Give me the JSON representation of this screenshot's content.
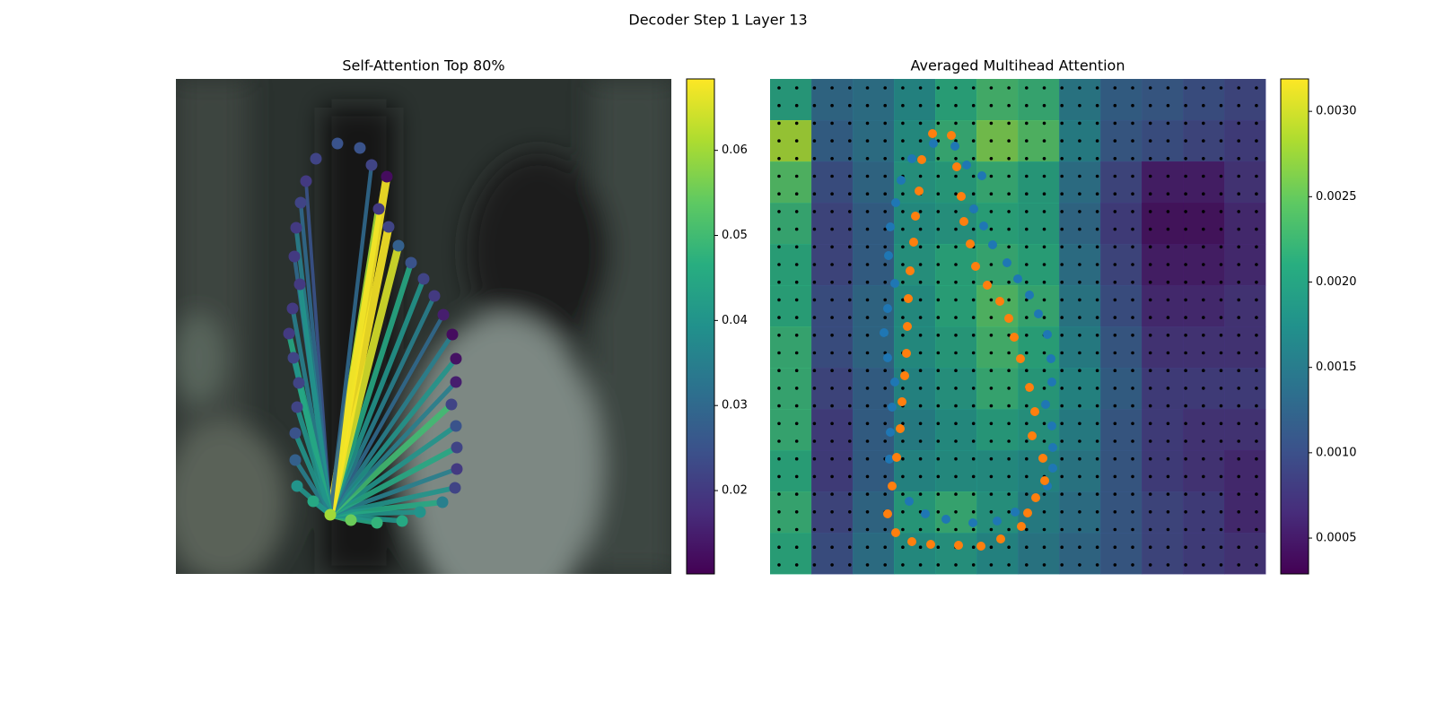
{
  "title": "Decoder Step 1 Layer 13",
  "chart_data": [
    {
      "type": "network",
      "title": "Self-Attention Top 80%",
      "colormap": "viridis",
      "xlim": [
        0,
        552
      ],
      "ylim": [
        552,
        0
      ],
      "clim": [
        0.0102,
        0.0684
      ],
      "cticks": [
        0.02,
        0.03,
        0.04,
        0.05,
        0.06
      ],
      "x": [
        172,
        195,
        224,
        252,
        272,
        297,
        311,
        313,
        313,
        312,
        307,
        312,
        312,
        308,
        298,
        288,
        276,
        262,
        248,
        237,
        226,
        235,
        218,
        205,
        180,
        156,
        145,
        139,
        134,
        132,
        138,
        130,
        126,
        131,
        137,
        135,
        133,
        133,
        135,
        153
      ],
      "y": [
        66,
        60,
        57,
        59,
        69,
        80,
        96,
        117,
        141,
        165,
        189,
        214,
        240,
        267,
        289,
        310,
        329,
        347,
        366,
        387,
        407,
        443,
        456,
        475,
        480,
        463,
        438,
        414,
        386,
        354,
        323,
        296,
        268,
        241,
        213,
        186,
        157,
        127,
        98,
        81
      ],
      "values": [
        0.06,
        0.055,
        0.048,
        0.045,
        0.04,
        0.035,
        0.022,
        0.02,
        0.022,
        0.025,
        0.022,
        0.015,
        0.013,
        0.012,
        0.015,
        0.02,
        0.022,
        0.025,
        0.028,
        0.022,
        0.02,
        0.012,
        0.022,
        0.025,
        0.025,
        0.022,
        0.02,
        0.022,
        0.02,
        0.02,
        0.02,
        0.02,
        0.02,
        0.022,
        0.022,
        0.022,
        0.025,
        0.028,
        0.04,
        0.045
      ],
      "edge_values": [
        null,
        0.05,
        0.045,
        0.04,
        0.04,
        0.045,
        0.04,
        0.035,
        0.045,
        0.04,
        0.05,
        0.035,
        0.04,
        0.035,
        0.03,
        0.035,
        0.04,
        0.045,
        0.065,
        0.068,
        0.06,
        0.068,
        0.03,
        null,
        null,
        null,
        0.025,
        0.03,
        0.035,
        0.03,
        0.04,
        0.035,
        0.045,
        0.04,
        0.045,
        0.04,
        0.04,
        0.035,
        0.04,
        0.04
      ]
    },
    {
      "type": "heatmap",
      "title": "Averaged Multihead Attention",
      "colormap": "viridis",
      "xlim": [
        0,
        552
      ],
      "ylim": [
        552,
        0
      ],
      "clim": [
        0.00029,
        0.00319
      ],
      "cticks": [
        0.0005,
        {
          "value": 0.001,
          "label": "0.0010"
        },
        0.0015,
        {
          "value": 0.002,
          "label": "0.0020"
        },
        0.0025,
        {
          "value": 0.003,
          "label": "0.0030"
        }
      ],
      "values": [
        [
          0.002,
          0.0013,
          0.0014,
          0.0017,
          0.0021,
          0.0023,
          0.0022,
          0.0015,
          0.0012,
          0.0011,
          0.001,
          0.0009
        ],
        [
          0.0028,
          0.0012,
          0.0014,
          0.0018,
          0.0022,
          0.0026,
          0.0024,
          0.0016,
          0.0011,
          0.001,
          0.0009,
          0.0008
        ],
        [
          0.0024,
          0.001,
          0.0013,
          0.0019,
          0.002,
          0.0022,
          0.002,
          0.0014,
          0.0009,
          0.0005,
          0.0005,
          0.0007
        ],
        [
          0.0022,
          0.0009,
          0.0012,
          0.0018,
          0.0019,
          0.0021,
          0.002,
          0.0013,
          0.0008,
          0.0004,
          0.0004,
          0.0006
        ],
        [
          0.0021,
          0.0009,
          0.0012,
          0.0019,
          0.0021,
          0.0022,
          0.0021,
          0.0014,
          0.0009,
          0.0005,
          0.0005,
          0.0006
        ],
        [
          0.0021,
          0.001,
          0.0013,
          0.0018,
          0.0021,
          0.0024,
          0.0022,
          0.0015,
          0.001,
          0.0006,
          0.0006,
          0.0007
        ],
        [
          0.0022,
          0.001,
          0.0013,
          0.0018,
          0.002,
          0.0023,
          0.0021,
          0.0016,
          0.0011,
          0.0007,
          0.0007,
          0.0007
        ],
        [
          0.0022,
          0.0009,
          0.0012,
          0.0017,
          0.0019,
          0.0022,
          0.002,
          0.0017,
          0.0012,
          0.0008,
          0.0008,
          0.0008
        ],
        [
          0.0022,
          0.0008,
          0.0012,
          0.0016,
          0.0018,
          0.002,
          0.0019,
          0.0016,
          0.0011,
          0.0008,
          0.0007,
          0.0007
        ],
        [
          0.0021,
          0.0008,
          0.0012,
          0.0017,
          0.0018,
          0.0018,
          0.0017,
          0.0015,
          0.0011,
          0.0008,
          0.0007,
          0.0006
        ],
        [
          0.0022,
          0.0009,
          0.0013,
          0.002,
          0.0022,
          0.0019,
          0.0016,
          0.0014,
          0.0011,
          0.0009,
          0.0008,
          0.0006
        ],
        [
          0.0021,
          0.001,
          0.0014,
          0.0018,
          0.0019,
          0.0017,
          0.0015,
          0.0013,
          0.0011,
          0.0009,
          0.0008,
          0.0007
        ]
      ],
      "points": [
        {
          "color": "#1f77b4",
          "x": [
            173,
            196,
            226,
            253,
            273,
            155,
            309,
            315,
            133,
            315,
            314,
            134,
            307,
            136,
            314,
            139,
            313,
            131,
            309,
            127,
            299,
            131,
            289,
            139,
            276,
            132,
            264,
            248,
            134,
            238,
            140,
            227,
            146,
            236,
            158,
            219,
            182,
            206
          ],
          "y": [
            67,
            61,
            57,
            59,
            69,
            81,
            98,
            118,
            128,
            141,
            165,
            158,
            189,
            186,
            214,
            214,
            240,
            241,
            267,
            269,
            290,
            296,
            311,
            324,
            329,
            355,
            347,
            367,
            387,
            388,
            414,
            407,
            439,
            444,
            463,
            456,
            480,
            477
          ]
        },
        {
          "color": "#ff7f0e",
          "x": [
            140,
            158,
            179,
            210,
            235,
            257,
            280,
            287,
            296,
            306,
            304,
            292,
            295,
            289,
            279,
            272,
            266,
            256,
            242,
            229,
            223,
            216,
            213,
            208,
            202,
            181,
            169,
            166,
            162,
            160,
            156,
            154,
            153,
            152,
            150,
            147,
            145,
            141,
            136,
            131
          ],
          "y": [
            46,
            36,
            33,
            32,
            31,
            39,
            53,
            68,
            85,
            104,
            129,
            154,
            181,
            208,
            240,
            264,
            285,
            304,
            322,
            343,
            368,
            393,
            421,
            454,
            489,
            491,
            462,
            427,
            399,
            370,
            338,
            307,
            276,
            246,
            221,
            192,
            162,
            130,
            98,
            67
          ]
        }
      ]
    }
  ]
}
